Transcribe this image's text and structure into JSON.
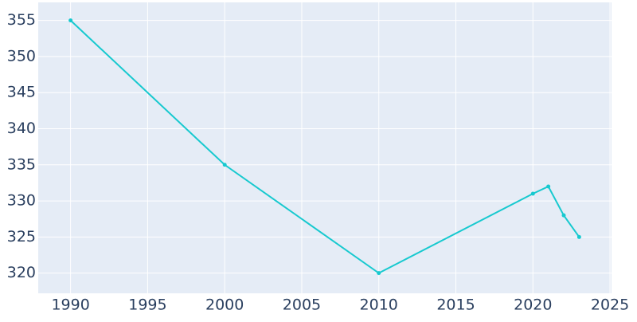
{
  "chart_data": {
    "type": "line",
    "x": [
      1990,
      2000,
      2010,
      2020,
      2021,
      2022,
      2023
    ],
    "series": [
      {
        "color": "#17c9cf",
        "values": [
          355,
          335,
          320,
          331,
          332,
          328,
          325
        ]
      }
    ],
    "xlim": [
      1987.9,
      2025.1
    ],
    "xticks": [
      1990,
      1995,
      2000,
      2005,
      2010,
      2015,
      2020,
      2025
    ],
    "ylim": [
      317.2,
      357.5
    ],
    "yticks": [
      320,
      325,
      330,
      335,
      340,
      345,
      350,
      355
    ],
    "grid": true
  }
}
